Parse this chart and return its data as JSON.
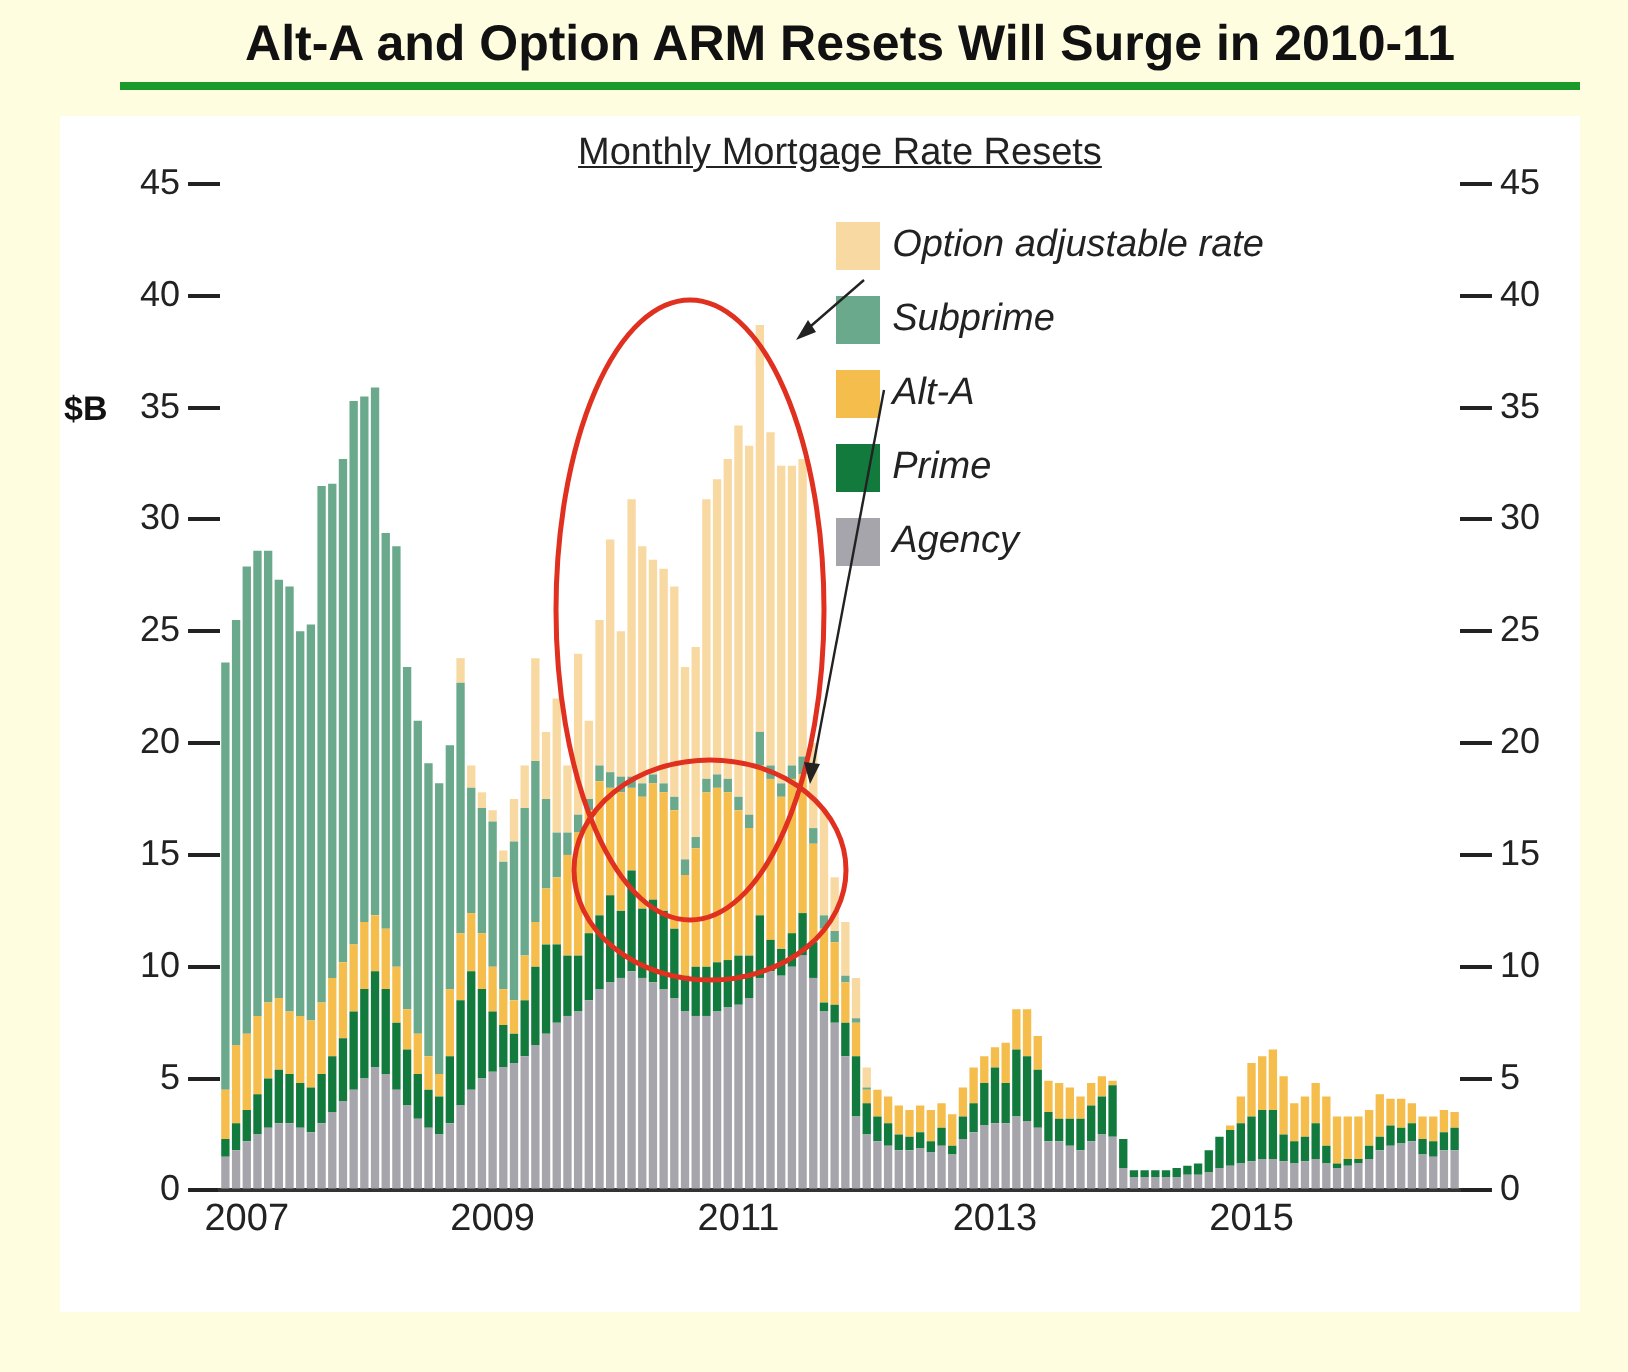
{
  "chart_data": {
    "type": "bar",
    "title": "Alt-A and Option ARM Resets Will Surge in 2010-11",
    "subtitle": "Monthly Mortgage Rate Resets",
    "ylabel": "$B",
    "categories": [
      null,
      null,
      "2007",
      null,
      null,
      null,
      null,
      null,
      null,
      null,
      null,
      null,
      null,
      null,
      null,
      null,
      null,
      null,
      null,
      null,
      null,
      null,
      null,
      null,
      null,
      "2009",
      null,
      null,
      null,
      null,
      null,
      null,
      null,
      null,
      null,
      null,
      null,
      null,
      null,
      null,
      null,
      null,
      null,
      null,
      null,
      null,
      null,
      null,
      "2011",
      null,
      null,
      null,
      null,
      null,
      null,
      null,
      null,
      null,
      null,
      null,
      null,
      null,
      null,
      null,
      null,
      null,
      null,
      null,
      null,
      null,
      null,
      null,
      "2013",
      null,
      null,
      null,
      null,
      null,
      null,
      null,
      null,
      null,
      null,
      null,
      null,
      null,
      null,
      null,
      null,
      null,
      null,
      null,
      null,
      null,
      null,
      null,
      "2015",
      null,
      null,
      null,
      null,
      null,
      null,
      null,
      null,
      null,
      null,
      null,
      null,
      null,
      null,
      null,
      null,
      null,
      null,
      null
    ],
    "series": [
      {
        "name": "Agency",
        "color": "#a5a5ab",
        "values": [
          1.5,
          1.8,
          2.2,
          2.5,
          2.8,
          3.0,
          3.0,
          2.8,
          2.6,
          3.0,
          3.5,
          4.0,
          4.5,
          5.0,
          5.5,
          5.2,
          4.5,
          3.8,
          3.2,
          2.8,
          2.5,
          3.0,
          3.8,
          4.5,
          5.0,
          5.3,
          5.5,
          5.7,
          6.0,
          6.5,
          7.0,
          7.5,
          7.8,
          8.0,
          8.5,
          9.0,
          9.3,
          9.5,
          9.8,
          9.5,
          9.3,
          9.0,
          8.6,
          8.0,
          7.8,
          7.8,
          8.0,
          8.2,
          8.3,
          8.6,
          9.5,
          9.8,
          9.6,
          10.0,
          10.5,
          9.5,
          8.0,
          7.5,
          6.0,
          3.3,
          2.5,
          2.2,
          2.0,
          1.8,
          1.8,
          1.9,
          1.7,
          2.0,
          1.6,
          2.3,
          2.6,
          2.9,
          3.0,
          3.0,
          3.3,
          3.1,
          2.8,
          2.2,
          2.2,
          2.0,
          1.8,
          2.2,
          2.5,
          2.4,
          1.0,
          0.6,
          0.6,
          0.6,
          0.6,
          0.6,
          0.7,
          0.7,
          0.8,
          1.0,
          1.1,
          1.2,
          1.3,
          1.4,
          1.4,
          1.3,
          1.2,
          1.3,
          1.4,
          1.2,
          1.0,
          1.1,
          1.2,
          1.4,
          1.8,
          2.0,
          2.1,
          2.2,
          1.6,
          1.5,
          1.8,
          1.8
        ]
      },
      {
        "name": "Prime",
        "color": "#137a3e",
        "values": [
          0.8,
          1.2,
          1.4,
          1.8,
          2.2,
          2.4,
          2.2,
          2.0,
          2.0,
          2.2,
          2.5,
          2.8,
          3.5,
          4.0,
          4.3,
          3.8,
          3.0,
          2.5,
          2.0,
          1.7,
          1.7,
          3.0,
          4.7,
          5.3,
          4.0,
          2.7,
          1.9,
          1.3,
          2.5,
          3.5,
          4.0,
          3.5,
          2.7,
          2.5,
          3.0,
          3.3,
          3.9,
          3.0,
          4.5,
          3.1,
          3.7,
          3.5,
          3.1,
          1.6,
          2.2,
          2.2,
          2.2,
          2.1,
          2.2,
          1.9,
          2.8,
          1.4,
          1.2,
          1.5,
          1.9,
          1.6,
          0.4,
          0.8,
          1.5,
          2.7,
          1.4,
          1.1,
          1.0,
          0.7,
          0.6,
          0.7,
          0.5,
          0.8,
          0.4,
          1.0,
          1.3,
          1.9,
          2.5,
          1.8,
          3.0,
          2.9,
          2.6,
          1.3,
          1.0,
          1.2,
          1.4,
          1.6,
          1.7,
          2.3,
          1.3,
          0.3,
          0.3,
          0.3,
          0.3,
          0.4,
          0.4,
          0.5,
          1.0,
          1.4,
          1.6,
          1.8,
          2.0,
          2.2,
          2.2,
          1.2,
          1.0,
          1.1,
          1.6,
          0.8,
          0.2,
          0.3,
          0.2,
          0.6,
          0.6,
          0.9,
          0.7,
          0.8,
          0.7,
          0.7,
          0.8,
          1.0
        ]
      },
      {
        "name": "Alt-A",
        "color": "#f5bd4c",
        "values": [
          2.2,
          3.5,
          3.4,
          3.5,
          3.4,
          3.2,
          2.8,
          3.0,
          3.0,
          3.2,
          3.5,
          3.4,
          3.0,
          3.0,
          2.5,
          2.7,
          2.5,
          1.8,
          1.8,
          1.5,
          1.0,
          3.0,
          3.0,
          2.6,
          2.5,
          2.0,
          1.6,
          1.5,
          2.0,
          2.0,
          2.5,
          3.0,
          4.5,
          5.5,
          5.5,
          6.0,
          4.8,
          5.3,
          3.7,
          5.0,
          5.2,
          5.3,
          5.3,
          4.5,
          5.3,
          7.8,
          7.8,
          7.5,
          6.5,
          5.7,
          6.7,
          7.2,
          6.8,
          6.9,
          6.2,
          4.4,
          3.3,
          2.8,
          1.8,
          1.5,
          0.6,
          1.2,
          1.2,
          1.3,
          1.2,
          1.2,
          1.4,
          1.1,
          1.4,
          1.3,
          1.6,
          1.2,
          0.9,
          1.8,
          1.8,
          2.1,
          1.5,
          1.4,
          1.6,
          1.4,
          1.0,
          1.0,
          0.9,
          0.2,
          0,
          0,
          0,
          0,
          0,
          0,
          0,
          0,
          0,
          0,
          0.2,
          1.2,
          2.4,
          2.4,
          2.7,
          2.6,
          1.7,
          1.8,
          1.8,
          2.2,
          2.1,
          1.9,
          1.9,
          1.6,
          1.9,
          1.2,
          1.3,
          0.9,
          1.0,
          1.1,
          1.0,
          0.7
        ]
      },
      {
        "name": "Subprime",
        "color": "#6aa98b",
        "values": [
          19.1,
          19.0,
          20.9,
          20.8,
          20.2,
          18.7,
          19.0,
          17.2,
          17.7,
          23.1,
          22.1,
          22.5,
          24.3,
          23.5,
          23.6,
          17.7,
          18.8,
          15.3,
          14.0,
          13.1,
          13.0,
          10.9,
          11.2,
          5.6,
          5.6,
          6.5,
          5.7,
          7.1,
          6.6,
          7.2,
          4.0,
          2.0,
          1.0,
          0.8,
          0.5,
          0.7,
          0.7,
          0.7,
          0.5,
          0.6,
          0.4,
          0.4,
          0.6,
          0.7,
          0.5,
          0.6,
          0.6,
          0.6,
          0.6,
          0.6,
          1.5,
          0.6,
          0.6,
          0.6,
          0.8,
          0.7,
          0.6,
          0.5,
          0.3,
          0.2,
          0.1,
          0,
          0,
          0,
          0,
          0,
          0,
          0,
          0,
          0,
          0,
          0,
          0,
          0,
          0,
          0,
          0,
          0,
          0,
          0,
          0,
          0,
          0,
          0,
          0,
          0,
          0,
          0,
          0,
          0,
          0,
          0,
          0,
          0,
          0,
          0,
          0,
          0,
          0,
          0,
          0,
          0,
          0,
          0,
          0,
          0,
          0,
          0,
          0,
          0,
          0,
          0,
          0,
          0,
          0,
          0
        ]
      },
      {
        "name": "Option adjustable rate",
        "color": "#f8d9a2",
        "values": [
          0,
          0,
          0,
          0,
          0,
          0,
          0,
          0,
          0,
          0,
          0,
          0,
          0,
          0,
          0,
          0,
          0,
          0,
          0,
          0,
          0,
          0,
          1.1,
          1.0,
          0.7,
          0.5,
          0.5,
          1.9,
          1.9,
          4.6,
          3.0,
          6.0,
          3.0,
          7.2,
          3.5,
          6.5,
          10.4,
          6.5,
          12.4,
          10.6,
          9.6,
          9.6,
          9.4,
          8.6,
          8.5,
          12.5,
          13.2,
          14.3,
          16.6,
          16.5,
          18.2,
          14.9,
          14.2,
          13.4,
          13.3,
          3.8,
          4.7,
          2.4,
          2.4,
          1.8,
          0.9,
          0,
          0,
          0,
          0,
          0,
          0,
          0,
          0,
          0,
          0,
          0,
          0,
          0,
          0,
          0,
          0,
          0,
          0,
          0,
          0,
          0,
          0,
          0,
          0,
          0,
          0,
          0,
          0,
          0,
          0,
          0,
          0,
          0,
          0,
          0,
          0,
          0,
          0,
          0,
          0,
          0,
          0,
          0,
          0,
          0,
          0,
          0,
          0,
          0,
          0,
          0,
          0,
          0,
          0,
          0
        ]
      }
    ],
    "stacked": true,
    "ylim": [
      0,
      45
    ],
    "yticks": [
      0,
      5,
      10,
      15,
      20,
      25,
      30,
      35,
      40,
      45
    ],
    "y2lim": [
      0,
      45
    ],
    "y2ticks": [
      0,
      5,
      10,
      15,
      20,
      25,
      30,
      35,
      40,
      45
    ],
    "grid": false,
    "legend": "top right"
  }
}
